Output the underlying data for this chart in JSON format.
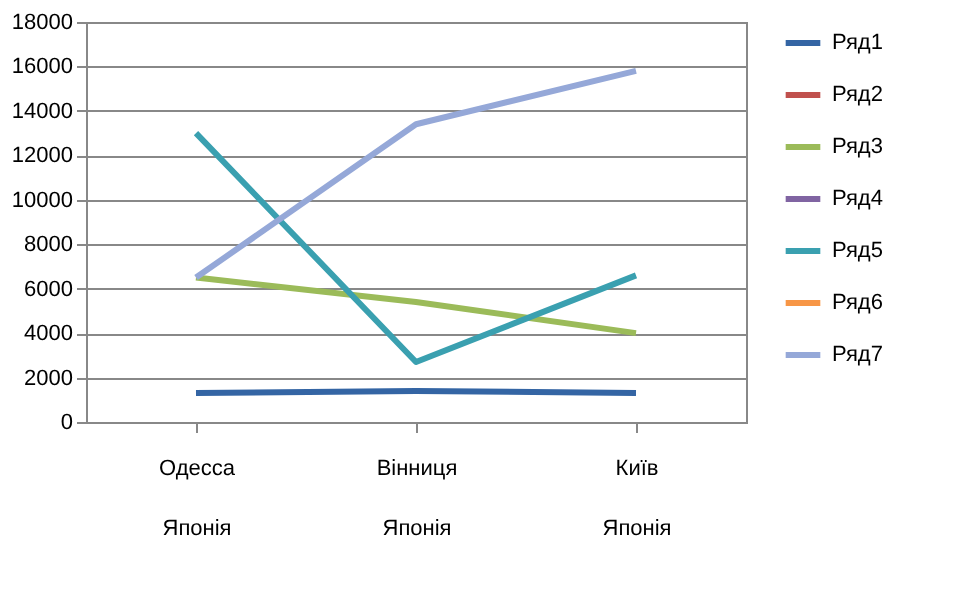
{
  "chart_data": {
    "type": "line",
    "categories": [
      "Одесса\nЯпонія",
      "Вінниця\nЯпонія",
      "Київ\nЯпонія"
    ],
    "series": [
      {
        "name": "Ряд1",
        "color": "#3465a4",
        "values": [
          1300,
          1400,
          1300
        ]
      },
      {
        "name": "Ряд2",
        "color": "#c0504d",
        "values": [
          null,
          null,
          null
        ]
      },
      {
        "name": "Ряд3",
        "color": "#9bbb59",
        "values": [
          6500,
          5400,
          4000
        ]
      },
      {
        "name": "Ряд4",
        "color": "#8064a2",
        "values": [
          null,
          null,
          null
        ]
      },
      {
        "name": "Ряд5",
        "color": "#3aa0b0",
        "values": [
          13000,
          2700,
          6600
        ]
      },
      {
        "name": "Ряд6",
        "color": "#f79646",
        "values": [
          null,
          null,
          null
        ]
      },
      {
        "name": "Ряд7",
        "color": "#95a8d8",
        "values": [
          6500,
          13400,
          15800
        ]
      }
    ],
    "ylim": [
      0,
      18000
    ],
    "yticks": [
      0,
      2000,
      4000,
      6000,
      8000,
      10000,
      12000,
      14000,
      16000,
      18000
    ],
    "grid": "y",
    "legend": "right",
    "marker": "none",
    "line_style": "solid"
  }
}
